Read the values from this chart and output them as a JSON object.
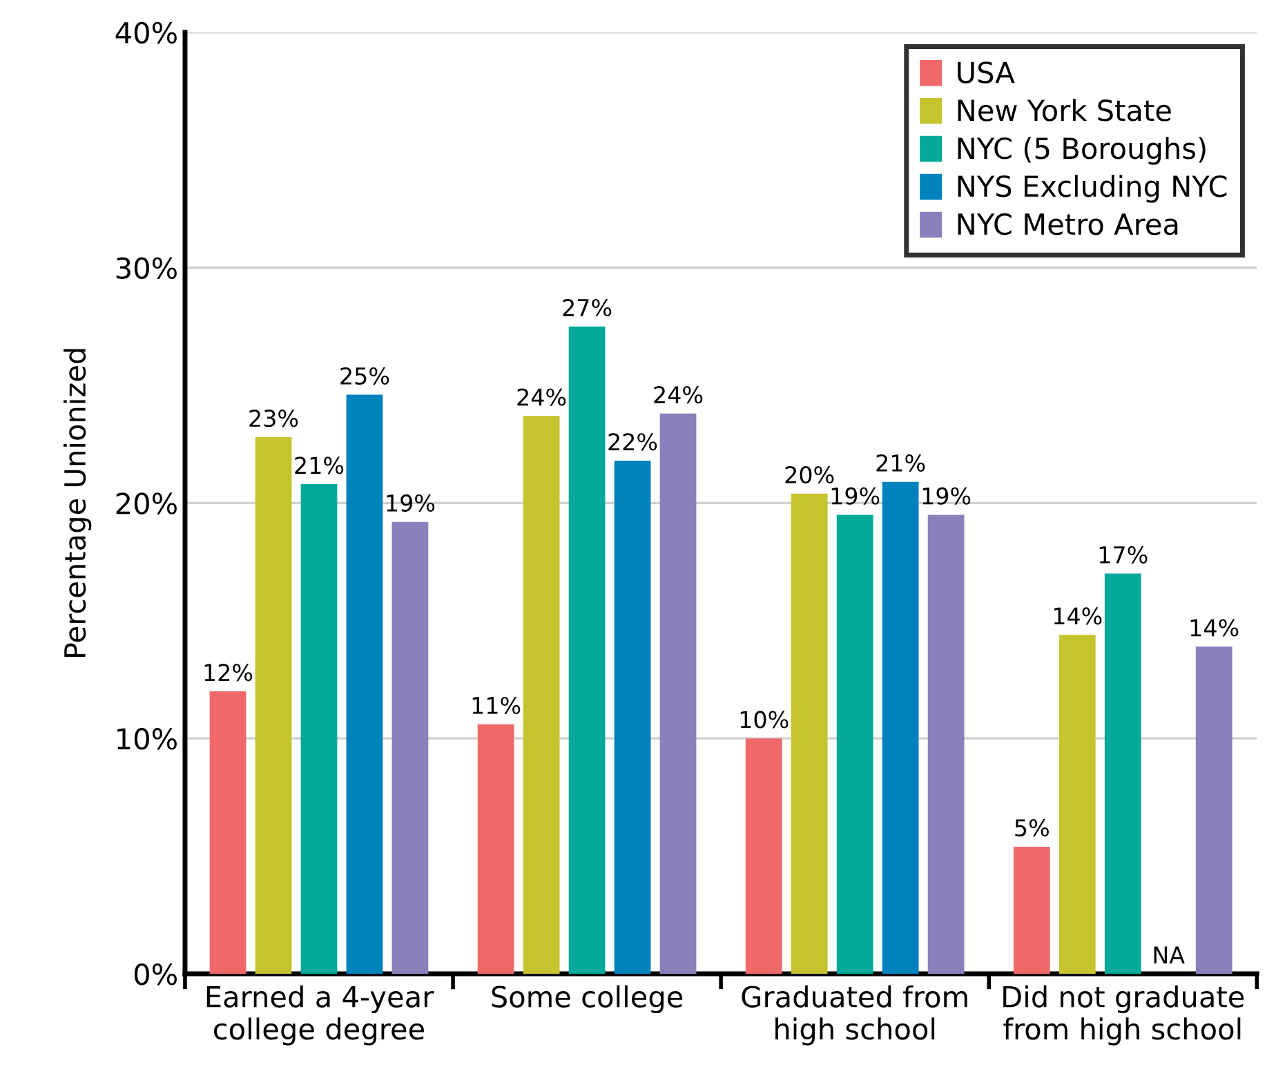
{
  "chart_data": {
    "type": "bar",
    "ylabel": "Percentage Unionized",
    "categories": [
      "Earned a 4-year\ncollege degree",
      "Some college",
      "Graduated from\nhigh school",
      "Did not graduate\nfrom high school"
    ],
    "series": [
      {
        "name": "USA",
        "color": "#f0686a",
        "values": [
          12.0,
          10.6,
          10.0,
          5.4
        ],
        "value_labels": [
          "12%",
          "11%",
          "10%",
          "5%"
        ]
      },
      {
        "name": "New York State",
        "color": "#c5c42e",
        "values": [
          22.8,
          23.7,
          20.4,
          14.4
        ],
        "value_labels": [
          "23%",
          "24%",
          "20%",
          "14%"
        ]
      },
      {
        "name": "NYC (5 Boroughs)",
        "color": "#00a99a",
        "values": [
          20.8,
          27.5,
          19.5,
          17.0
        ],
        "value_labels": [
          "21%",
          "27%",
          "19%",
          "17%"
        ]
      },
      {
        "name": "NYS Excluding NYC",
        "color": "#0082bd",
        "values": [
          24.6,
          21.8,
          20.9,
          null
        ],
        "value_labels": [
          "25%",
          "22%",
          "21%",
          "NA"
        ]
      },
      {
        "name": "NYC Metro Area",
        "color": "#8b7fbc",
        "values": [
          19.2,
          23.8,
          19.5,
          13.9
        ],
        "value_labels": [
          "19%",
          "24%",
          "19%",
          "14%"
        ]
      }
    ],
    "ylim": [
      0,
      40
    ],
    "yticks": [
      {
        "value": 0,
        "label": "0%"
      },
      {
        "value": 10,
        "label": "10%"
      },
      {
        "value": 20,
        "label": "20%"
      },
      {
        "value": 30,
        "label": "30%"
      },
      {
        "value": 40,
        "label": "40%"
      }
    ],
    "grid": "y",
    "legend": "top right"
  }
}
